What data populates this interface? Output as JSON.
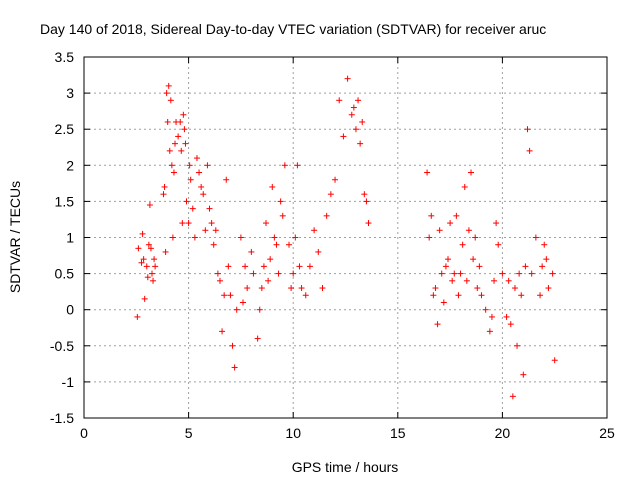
{
  "chart_data": {
    "type": "scatter",
    "title": "Day 140 of 2018, Sidereal Day-to-day VTEC variation (SDTVAR) for receiver aruc",
    "xlabel": "GPS time / hours",
    "ylabel": "SDTVAR / TECUs",
    "xlim": [
      0,
      25
    ],
    "ylim": [
      -1.5,
      3.5
    ],
    "xticks": [
      0,
      5,
      10,
      15,
      20,
      25
    ],
    "xtick_labels": [
      "0",
      "5",
      "10",
      "15",
      "20",
      "25"
    ],
    "yticks": [
      -1.5,
      -1,
      -0.5,
      0,
      0.5,
      1,
      1.5,
      2,
      2.5,
      3,
      3.5
    ],
    "ytick_labels": [
      "-1.5",
      "-1",
      "-0.5",
      "0",
      "0.5",
      "1",
      "1.5",
      "2",
      "2.5",
      "3",
      "3.5"
    ],
    "grid": true,
    "marker": "+",
    "marker_color": "#ff0000",
    "series": [
      {
        "name": "SDTVAR",
        "color": "#ff0000",
        "x": [
          2.6,
          2.55,
          2.75,
          2.8,
          2.85,
          2.9,
          3.0,
          3.05,
          3.1,
          3.15,
          3.2,
          3.25,
          3.3,
          3.35,
          3.4,
          3.8,
          3.85,
          3.9,
          3.95,
          4.0,
          4.05,
          4.1,
          4.15,
          4.2,
          4.25,
          4.3,
          4.35,
          4.4,
          4.5,
          4.6,
          4.65,
          4.7,
          4.75,
          4.8,
          4.85,
          4.9,
          5.0,
          5.05,
          5.1,
          5.2,
          5.3,
          5.4,
          5.5,
          5.6,
          5.7,
          5.8,
          5.9,
          6.0,
          6.1,
          6.2,
          6.3,
          6.4,
          6.5,
          6.6,
          6.7,
          6.8,
          6.9,
          7.0,
          7.1,
          7.2,
          7.3,
          7.5,
          7.6,
          7.7,
          7.8,
          8.0,
          8.1,
          8.3,
          8.4,
          8.5,
          8.6,
          8.7,
          8.8,
          8.9,
          9.0,
          9.1,
          9.2,
          9.3,
          9.4,
          9.5,
          9.6,
          9.8,
          9.9,
          10.0,
          10.1,
          10.2,
          10.3,
          10.4,
          10.6,
          10.8,
          11.0,
          11.2,
          11.4,
          11.6,
          11.8,
          12.0,
          12.2,
          12.4,
          12.6,
          12.8,
          12.9,
          13.0,
          13.1,
          13.2,
          13.3,
          13.4,
          13.5,
          13.6,
          16.4,
          16.5,
          16.6,
          16.7,
          16.8,
          16.9,
          17.0,
          17.1,
          17.2,
          17.3,
          17.4,
          17.5,
          17.6,
          17.7,
          17.8,
          17.9,
          18.0,
          18.1,
          18.2,
          18.3,
          18.4,
          18.5,
          18.6,
          18.7,
          18.8,
          18.9,
          19.0,
          19.2,
          19.4,
          19.5,
          19.6,
          19.7,
          19.8,
          20.0,
          20.2,
          20.3,
          20.4,
          20.5,
          20.6,
          20.7,
          20.8,
          20.9,
          21.0,
          21.1,
          21.2,
          21.3,
          21.4,
          21.6,
          21.8,
          21.9,
          22.0,
          22.1,
          22.2,
          22.4,
          22.5
        ],
        "y": [
          0.85,
          -0.1,
          0.65,
          1.05,
          0.7,
          0.15,
          0.6,
          0.45,
          0.9,
          1.45,
          0.85,
          0.5,
          0.4,
          0.7,
          0.6,
          1.6,
          1.7,
          0.8,
          3.0,
          2.6,
          3.1,
          2.2,
          2.9,
          2.0,
          1.0,
          1.9,
          2.3,
          2.6,
          2.4,
          2.6,
          2.2,
          1.2,
          2.7,
          2.5,
          2.3,
          1.5,
          1.2,
          2.0,
          1.8,
          1.4,
          1.0,
          2.1,
          1.9,
          1.7,
          1.6,
          1.1,
          2.0,
          1.4,
          1.2,
          0.9,
          1.1,
          0.5,
          0.4,
          -0.3,
          0.2,
          1.8,
          0.6,
          0.2,
          -0.5,
          -0.8,
          0.0,
          1.0,
          0.1,
          0.6,
          0.3,
          0.8,
          0.5,
          -0.4,
          0.0,
          0.3,
          0.6,
          1.2,
          0.4,
          0.7,
          1.7,
          1.0,
          0.9,
          0.5,
          1.5,
          1.3,
          2.0,
          0.9,
          0.3,
          0.5,
          1.0,
          2.0,
          0.6,
          0.3,
          0.2,
          0.6,
          1.1,
          0.8,
          0.3,
          1.3,
          1.6,
          1.8,
          2.9,
          2.4,
          3.2,
          2.7,
          2.8,
          2.5,
          2.9,
          2.3,
          2.6,
          1.6,
          1.5,
          1.2,
          1.9,
          1.0,
          1.3,
          0.2,
          0.3,
          -0.2,
          1.1,
          0.5,
          0.1,
          0.6,
          0.7,
          1.2,
          0.4,
          0.5,
          1.3,
          0.2,
          0.5,
          0.9,
          1.7,
          0.4,
          1.1,
          1.9,
          0.7,
          1.0,
          0.3,
          0.6,
          0.2,
          0.0,
          -0.3,
          -0.1,
          0.4,
          1.2,
          0.9,
          0.5,
          -0.1,
          0.4,
          -0.2,
          -1.2,
          0.3,
          -0.5,
          0.5,
          0.2,
          -0.9,
          0.6,
          2.5,
          2.2,
          0.5,
          1.0,
          0.2,
          0.6,
          0.9,
          0.7,
          0.3,
          0.5,
          -0.7
        ]
      }
    ]
  }
}
